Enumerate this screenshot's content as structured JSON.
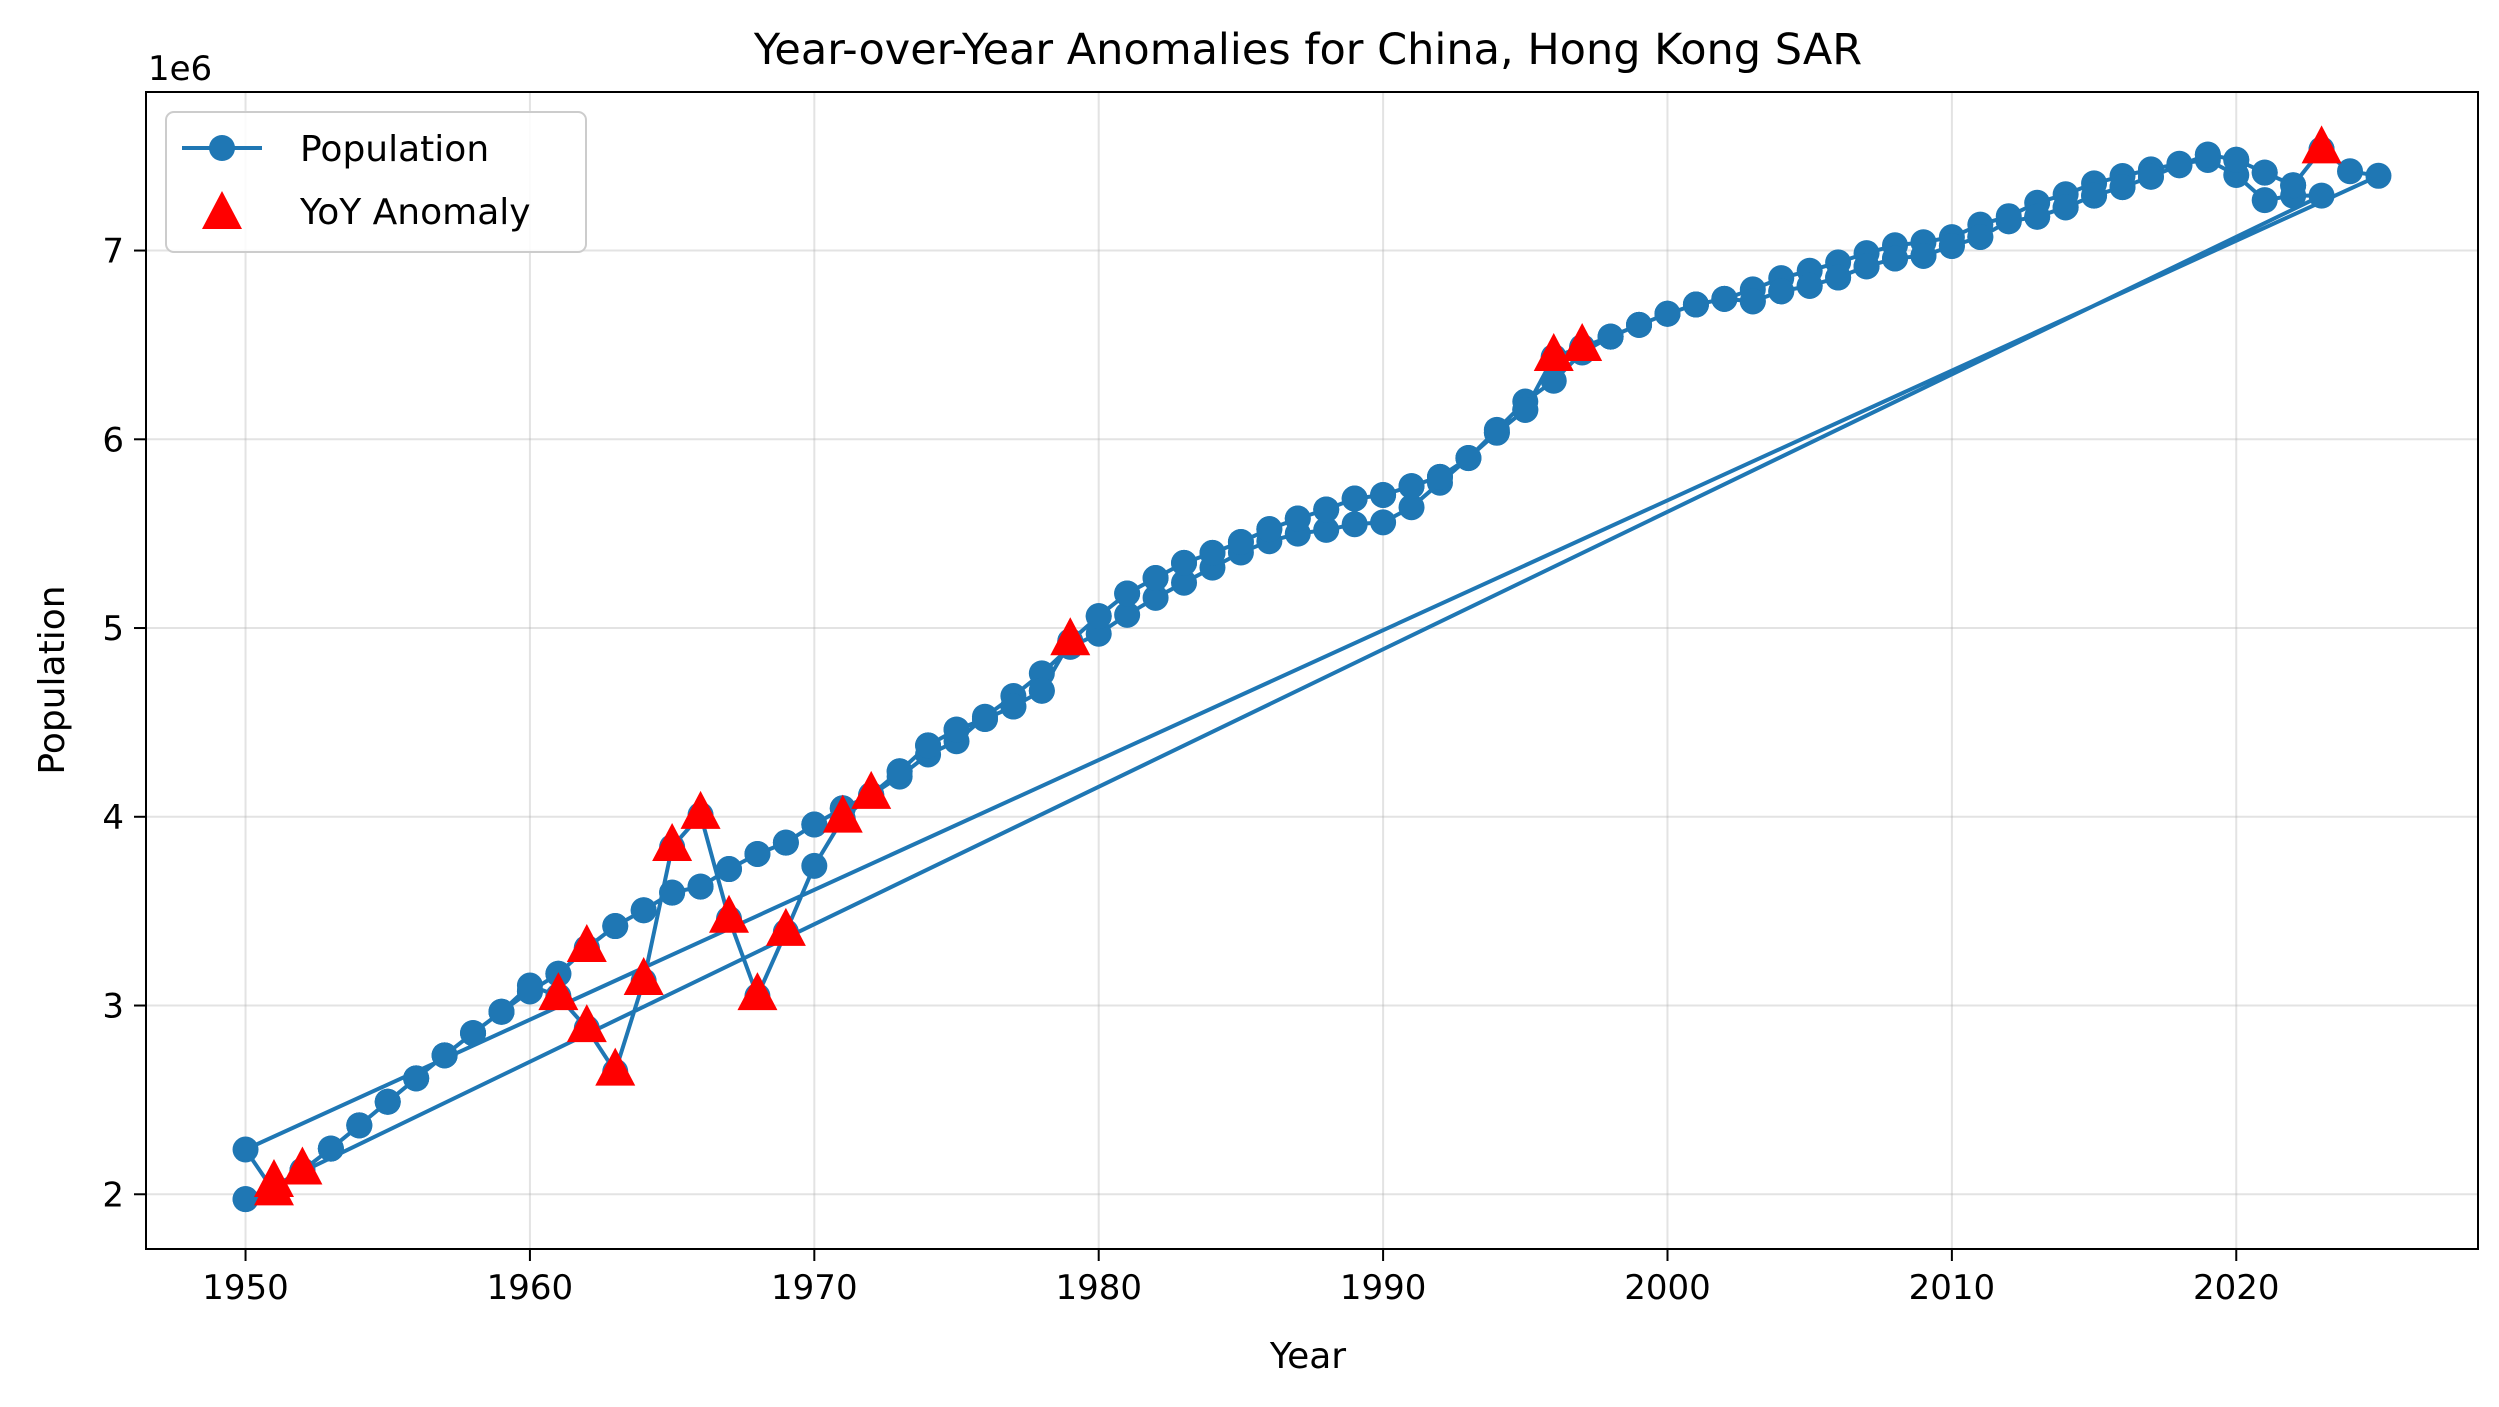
{
  "chart_data": {
    "type": "line",
    "title": "Year-over-Year Anomalies for China, Hong Kong SAR",
    "xlabel": "Year",
    "ylabel": "Population",
    "y_offset_label": "1e6",
    "xlim": [
      1946.5,
      2028.5
    ],
    "ylim": [
      1.71,
      7.84
    ],
    "xticks": [
      1950,
      1960,
      1970,
      1980,
      1990,
      2000,
      2010,
      2020
    ],
    "yticks": [
      2,
      3,
      4,
      5,
      6,
      7
    ],
    "grid": true,
    "legend_position": "top-left",
    "colors": {
      "line": "#1f77b4",
      "anomaly": "#ff0000"
    },
    "series": [
      {
        "name": "Population",
        "style": "line-marker",
        "points": [
          [
            1950,
            1.974
          ],
          [
            1951,
            2.015
          ],
          [
            1952,
            2.126
          ],
          [
            1953,
            2.242
          ],
          [
            1954,
            2.365
          ],
          [
            1955,
            2.49
          ],
          [
            1956,
            2.614
          ],
          [
            1957,
            2.736
          ],
          [
            1958,
            2.854
          ],
          [
            1959,
            2.967
          ],
          [
            1960,
            3.075
          ],
          [
            1961,
            3.168
          ],
          [
            1962,
            3.305
          ],
          [
            1963,
            3.421
          ],
          [
            1964,
            3.505
          ],
          [
            1965,
            3.598
          ],
          [
            1966,
            3.63
          ],
          [
            1967,
            3.723
          ],
          [
            1968,
            3.803
          ],
          [
            1969,
            3.863
          ],
          [
            1970,
            3.959
          ],
          [
            1971,
            4.045
          ],
          [
            1972,
            4.116
          ],
          [
            1973,
            4.241
          ],
          [
            1974,
            4.378
          ],
          [
            1975,
            4.462
          ],
          [
            1976,
            4.518
          ],
          [
            1977,
            4.584
          ],
          [
            1978,
            4.668
          ],
          [
            1979,
            4.93
          ],
          [
            1980,
            5.063
          ],
          [
            1981,
            5.183
          ],
          [
            1982,
            5.265
          ],
          [
            1983,
            5.345
          ],
          [
            1984,
            5.398
          ],
          [
            1985,
            5.456
          ],
          [
            1986,
            5.524
          ],
          [
            1987,
            5.58
          ],
          [
            1988,
            5.628
          ],
          [
            1989,
            5.686
          ],
          [
            1990,
            5.705
          ],
          [
            1991,
            5.752
          ],
          [
            1992,
            5.801
          ],
          [
            1993,
            5.901
          ],
          [
            1994,
            6.035
          ],
          [
            1995,
            6.156
          ],
          [
            1996,
            6.436
          ],
          [
            1997,
            6.489
          ],
          [
            1998,
            6.544
          ],
          [
            1999,
            6.606
          ],
          [
            2000,
            6.665
          ],
          [
            2001,
            6.714
          ],
          [
            2002,
            6.744
          ],
          [
            2003,
            6.731
          ],
          [
            2004,
            6.784
          ],
          [
            2005,
            6.813
          ],
          [
            2006,
            6.857
          ],
          [
            2007,
            6.916
          ],
          [
            2008,
            6.958
          ],
          [
            2009,
            6.972
          ],
          [
            2010,
            7.024
          ],
          [
            2011,
            7.072
          ],
          [
            2012,
            7.155
          ],
          [
            2013,
            7.179
          ],
          [
            2014,
            7.229
          ],
          [
            2015,
            7.291
          ],
          [
            2016,
            7.336
          ],
          [
            2017,
            7.391
          ],
          [
            2018,
            7.452
          ],
          [
            2019,
            7.508
          ],
          [
            2020,
            7.481
          ],
          [
            2021,
            7.413
          ],
          [
            2022,
            7.346
          ],
          [
            2023,
            7.536
          ],
          [
            2024,
            7.42
          ],
          [
            2025,
            7.396
          ],
          [
            1950,
            2.237
          ],
          [
            1951,
            2.015
          ],
          [
            1952,
            2.126
          ],
          [
            1953,
            2.242
          ],
          [
            1954,
            2.365
          ],
          [
            1955,
            2.49
          ],
          [
            1956,
            2.614
          ],
          [
            1957,
            2.736
          ],
          [
            1958,
            2.854
          ],
          [
            1959,
            2.967
          ],
          [
            1960,
            3.106
          ],
          [
            1961,
            3.05
          ],
          [
            1962,
            2.88
          ],
          [
            1963,
            2.65
          ],
          [
            1964,
            3.13
          ],
          [
            1965,
            3.84
          ],
          [
            1966,
            4.01
          ],
          [
            1967,
            3.46
          ],
          [
            1968,
            3.05
          ],
          [
            1969,
            3.39
          ],
          [
            1970,
            3.74
          ],
          [
            1971,
            3.99
          ],
          [
            1972,
            4.116
          ],
          [
            1973,
            4.213
          ],
          [
            1974,
            4.33
          ],
          [
            1975,
            4.4
          ],
          [
            1976,
            4.53
          ],
          [
            1977,
            4.64
          ],
          [
            1978,
            4.76
          ],
          [
            1979,
            4.9
          ],
          [
            1980,
            4.97
          ],
          [
            1981,
            5.07
          ],
          [
            1982,
            5.16
          ],
          [
            1983,
            5.24
          ],
          [
            1984,
            5.32
          ],
          [
            1985,
            5.4
          ],
          [
            1986,
            5.46
          ],
          [
            1987,
            5.5
          ],
          [
            1988,
            5.52
          ],
          [
            1989,
            5.55
          ],
          [
            1990,
            5.56
          ],
          [
            1991,
            5.64
          ],
          [
            1992,
            5.77
          ],
          [
            1993,
            5.9
          ],
          [
            1994,
            6.05
          ],
          [
            1995,
            6.2
          ],
          [
            1996,
            6.31
          ],
          [
            1997,
            6.46
          ],
          [
            1998,
            6.544
          ],
          [
            1999,
            6.606
          ],
          [
            2000,
            6.665
          ],
          [
            2001,
            6.714
          ],
          [
            2002,
            6.744
          ],
          [
            2003,
            6.794
          ],
          [
            2004,
            6.854
          ],
          [
            2005,
            6.893
          ],
          [
            2006,
            6.937
          ],
          [
            2007,
            6.986
          ],
          [
            2008,
            7.028
          ],
          [
            2009,
            7.044
          ],
          [
            2010,
            7.071
          ],
          [
            2011,
            7.137
          ],
          [
            2012,
            7.182
          ],
          [
            2013,
            7.253
          ],
          [
            2014,
            7.298
          ],
          [
            2015,
            7.356
          ],
          [
            2016,
            7.395
          ],
          [
            2017,
            7.43
          ],
          [
            2018,
            7.46
          ],
          [
            2019,
            7.48
          ],
          [
            2020,
            7.4
          ],
          [
            2021,
            7.267
          ],
          [
            2022,
            7.291
          ],
          [
            2023,
            7.291
          ],
          [
            1950,
            1.974
          ],
          [
            1951,
            2.015
          ],
          [
            1952,
            2.126
          ],
          [
            1953,
            2.242
          ],
          [
            1954,
            2.365
          ],
          [
            1955,
            2.49
          ],
          [
            1956,
            2.614
          ],
          [
            1957,
            2.736
          ],
          [
            1958,
            2.854
          ],
          [
            1959,
            2.967
          ],
          [
            1960,
            3.075
          ],
          [
            1961,
            3.168
          ],
          [
            1962,
            3.305
          ],
          [
            1963,
            3.421
          ],
          [
            1964,
            3.505
          ],
          [
            1965,
            3.598
          ],
          [
            1966,
            3.63
          ],
          [
            1967,
            3.723
          ],
          [
            1968,
            3.803
          ],
          [
            1969,
            3.863
          ],
          [
            1970,
            3.959
          ],
          [
            1971,
            4.045
          ],
          [
            1972,
            4.116
          ],
          [
            1973,
            4.241
          ],
          [
            1974,
            4.378
          ],
          [
            1975,
            4.462
          ],
          [
            1976,
            4.518
          ],
          [
            1977,
            4.584
          ],
          [
            1978,
            4.668
          ],
          [
            1979,
            4.93
          ],
          [
            1980,
            5.063
          ],
          [
            1981,
            5.183
          ],
          [
            1982,
            5.265
          ],
          [
            1983,
            5.345
          ],
          [
            1984,
            5.398
          ],
          [
            1985,
            5.456
          ],
          [
            1986,
            5.524
          ],
          [
            1987,
            5.58
          ],
          [
            1988,
            5.628
          ],
          [
            1989,
            5.686
          ],
          [
            1990,
            5.705
          ],
          [
            1991,
            5.752
          ],
          [
            1992,
            5.801
          ],
          [
            1993,
            5.901
          ],
          [
            1994,
            6.035
          ],
          [
            1995,
            6.156
          ],
          [
            1996,
            6.436
          ],
          [
            1997,
            6.489
          ],
          [
            1998,
            6.544
          ],
          [
            1999,
            6.606
          ],
          [
            2000,
            6.665
          ],
          [
            2001,
            6.714
          ],
          [
            2002,
            6.744
          ],
          [
            2003,
            6.731
          ],
          [
            2004,
            6.784
          ],
          [
            2005,
            6.813
          ],
          [
            2006,
            6.857
          ],
          [
            2007,
            6.916
          ],
          [
            2008,
            6.958
          ],
          [
            2009,
            6.972
          ],
          [
            2010,
            7.024
          ],
          [
            2011,
            7.072
          ],
          [
            2012,
            7.155
          ],
          [
            2013,
            7.179
          ],
          [
            2014,
            7.229
          ],
          [
            2015,
            7.291
          ],
          [
            2016,
            7.336
          ],
          [
            2017,
            7.391
          ],
          [
            2018,
            7.452
          ],
          [
            2019,
            7.508
          ],
          [
            2020,
            7.481
          ],
          [
            2021,
            7.413
          ],
          [
            2022,
            7.346
          ],
          [
            2023,
            7.536
          ]
        ]
      },
      {
        "name": "YoY Anomaly",
        "style": "triangle-marker",
        "points": [
          [
            1951,
            2.015
          ],
          [
            1951,
            2.06
          ],
          [
            1952,
            2.126
          ],
          [
            1961,
            3.05
          ],
          [
            1962,
            3.305
          ],
          [
            1962,
            2.88
          ],
          [
            1963,
            2.65
          ],
          [
            1964,
            3.13
          ],
          [
            1965,
            3.84
          ],
          [
            1966,
            4.01
          ],
          [
            1967,
            3.46
          ],
          [
            1968,
            3.05
          ],
          [
            1969,
            3.39
          ],
          [
            1971,
            3.99
          ],
          [
            1972,
            4.116
          ],
          [
            1979,
            4.93
          ],
          [
            1996,
            6.436
          ],
          [
            1997,
            6.489
          ],
          [
            2023,
            7.536
          ]
        ]
      }
    ]
  }
}
